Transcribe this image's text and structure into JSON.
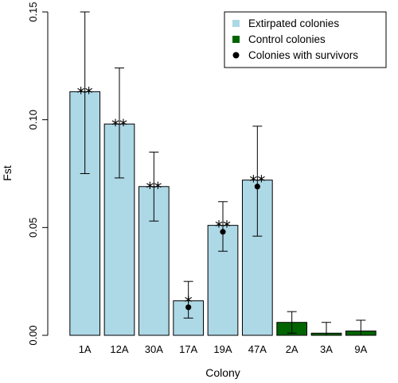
{
  "chart_data": {
    "type": "bar",
    "categories": [
      "1A",
      "12A",
      "30A",
      "17A",
      "19A",
      "47A",
      "2A",
      "3A",
      "9A"
    ],
    "values": [
      0.113,
      0.098,
      0.069,
      0.016,
      0.051,
      0.072,
      0.006,
      0.001,
      0.002
    ],
    "error_low": [
      0.075,
      0.073,
      0.053,
      0.008,
      0.039,
      0.046,
      0.001,
      0.0,
      0.0
    ],
    "error_high": [
      0.15,
      0.124,
      0.085,
      0.025,
      0.062,
      0.097,
      0.011,
      0.006,
      0.007
    ],
    "groups": [
      "Extirpated colonies",
      "Extirpated colonies",
      "Extirpated colonies",
      "Extirpated colonies",
      "Extirpated colonies",
      "Extirpated colonies",
      "Control colonies",
      "Control colonies",
      "Control colonies"
    ],
    "survivor_values": [
      null,
      null,
      null,
      0.013,
      0.048,
      0.069,
      null,
      null,
      null
    ],
    "significance": [
      "**",
      "**",
      "**",
      "*",
      "**",
      "**",
      "",
      "",
      ""
    ],
    "xlabel": "Colony",
    "ylabel": "Fst",
    "ylim": [
      0,
      0.15
    ],
    "yticks": [
      0.0,
      0.05,
      0.1,
      0.15
    ],
    "ytick_labels": [
      "0.00",
      "0.05",
      "0.10",
      "0.15"
    ],
    "legend": {
      "position": "top-right",
      "entries": [
        {
          "label": "Extirpated colonies",
          "marker": "square",
          "color": "#add8e6"
        },
        {
          "label": "Control colonies",
          "marker": "square",
          "color": "#006400"
        },
        {
          "label": "Colonies with survivors",
          "marker": "circle",
          "color": "#000000"
        }
      ]
    },
    "colors": {
      "extirpated": "#add8e6",
      "control": "#006400",
      "survivor": "#000000"
    }
  }
}
